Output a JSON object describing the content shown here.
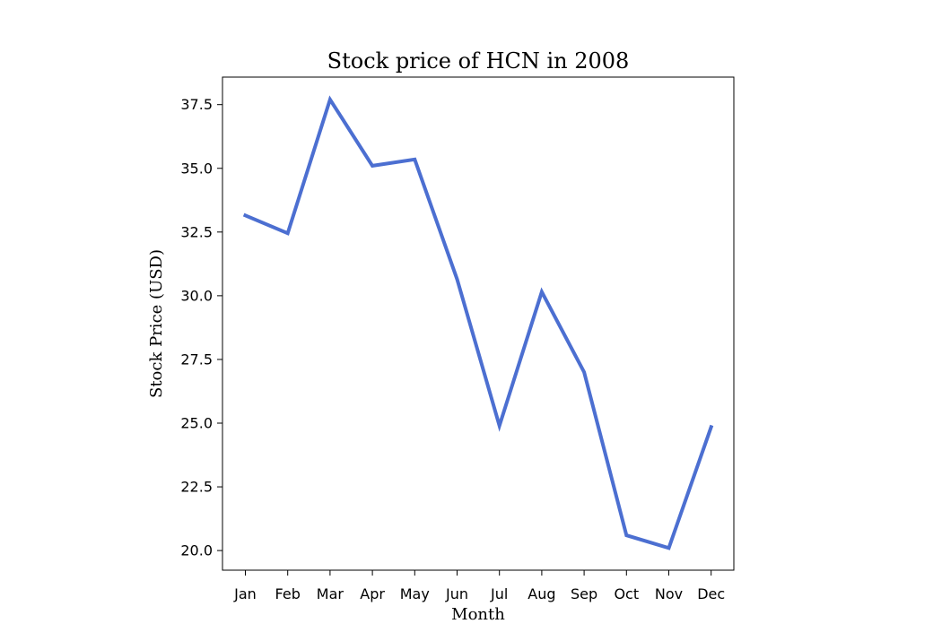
{
  "chart_data": {
    "type": "line",
    "title": "Stock price of HCN in 2008",
    "xlabel": "Month",
    "ylabel": "Stock Price (USD)",
    "categories": [
      "Jan",
      "Feb",
      "Mar",
      "Apr",
      "May",
      "Jun",
      "Jul",
      "Aug",
      "Sep",
      "Oct",
      "Nov",
      "Dec"
    ],
    "series": [
      {
        "values": [
          33.15,
          32.45,
          37.7,
          35.1,
          35.35,
          30.65,
          24.9,
          30.15,
          27.0,
          20.6,
          20.1,
          24.85
        ],
        "color": "#4c6fd1"
      }
    ],
    "ylim": [
      19.23,
      38.58
    ],
    "yticks": [
      20.0,
      22.5,
      25.0,
      27.5,
      30.0,
      32.5,
      35.0,
      37.5
    ],
    "ytick_labels": [
      "20.0",
      "22.5",
      "25.0",
      "27.5",
      "30.0",
      "32.5",
      "35.0",
      "37.5"
    ],
    "grid": false,
    "legend": "none"
  }
}
